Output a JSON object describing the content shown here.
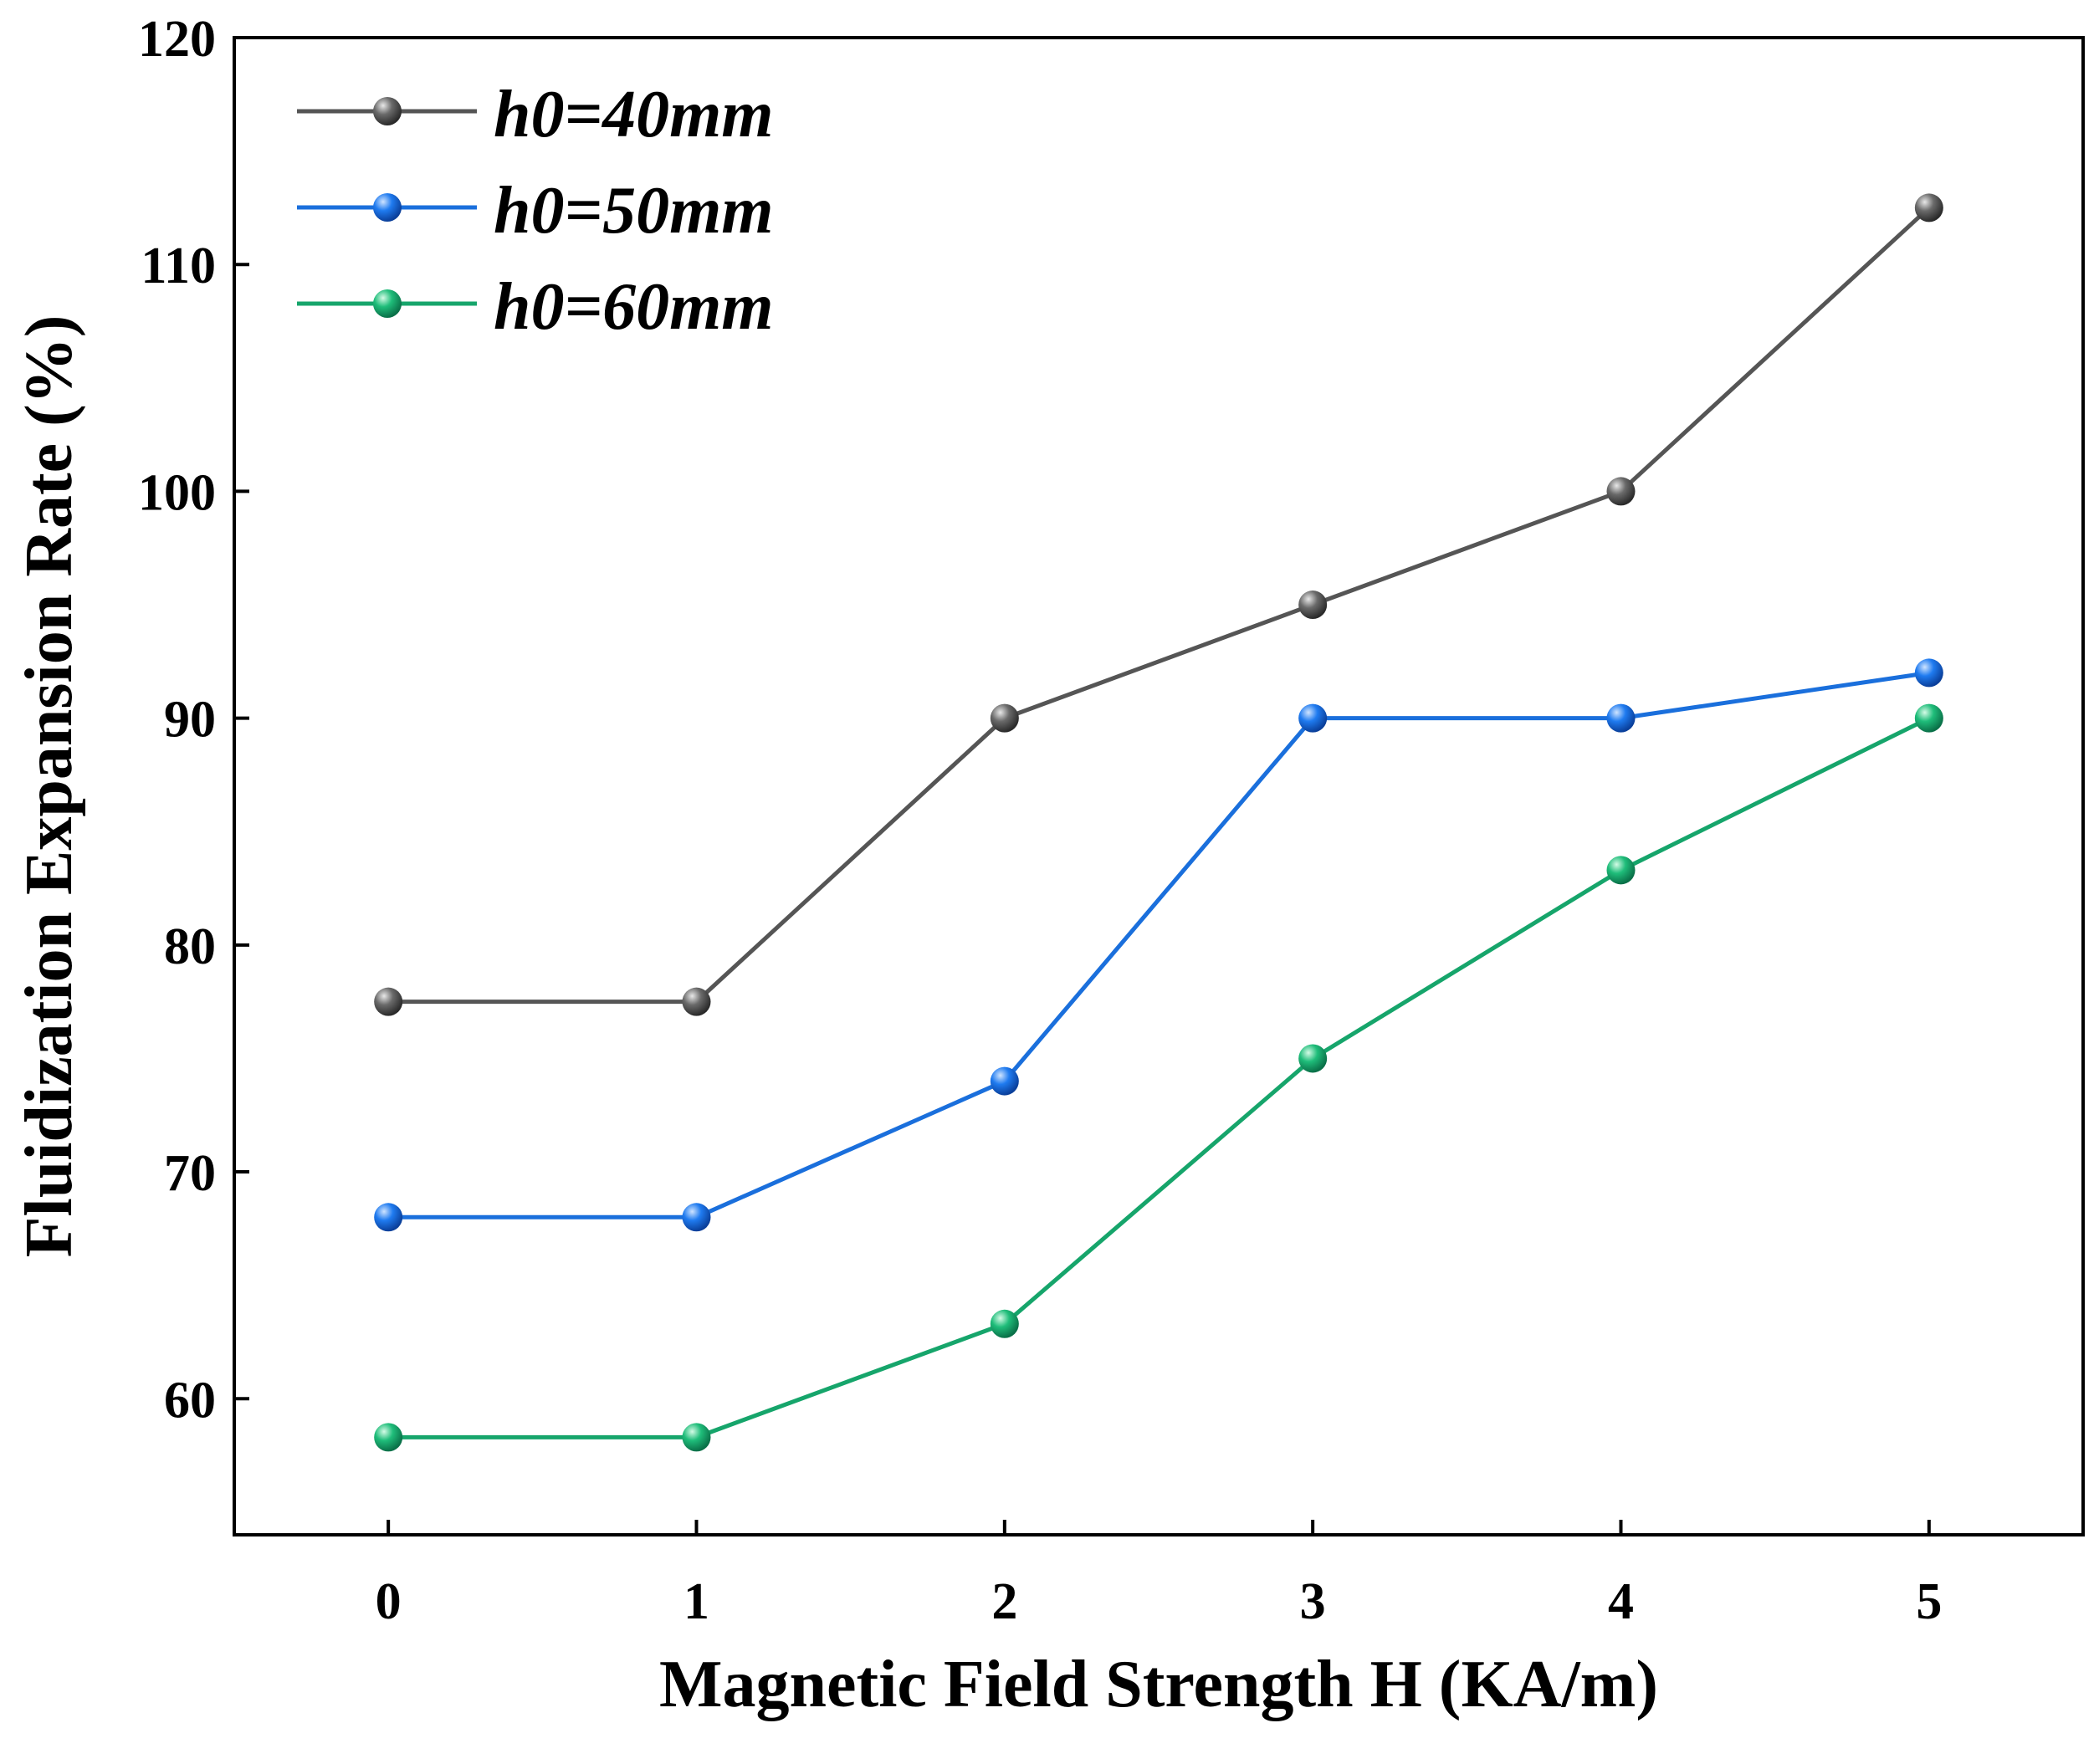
{
  "chart_data": {
    "type": "line",
    "title": "",
    "xlabel": "Magnetic Field Strength H (KA/m)",
    "ylabel": "Fluidization Expansion Rate (%)",
    "x": [
      0,
      1,
      2,
      3,
      4,
      5
    ],
    "xticks": [
      "0",
      "1",
      "2",
      "3",
      "4",
      "5"
    ],
    "yticks": [
      "60",
      "70",
      "80",
      "90",
      "100",
      "110",
      "120"
    ],
    "xlim": [
      -0.5,
      5.5
    ],
    "ylim": [
      54,
      120
    ],
    "grid": false,
    "legend_position": "top-left",
    "series": [
      {
        "name": "h0=40mm",
        "color": "#555555",
        "values": [
          77.5,
          77.5,
          90,
          95,
          100,
          112.5
        ]
      },
      {
        "name": "h0=50mm",
        "color": "#1a6fdc",
        "values": [
          68,
          68,
          74,
          90,
          90,
          92
        ]
      },
      {
        "name": "h0=60mm",
        "color": "#16a56b",
        "values": [
          58.3,
          58.3,
          63.3,
          75,
          83.3,
          90
        ]
      }
    ]
  }
}
